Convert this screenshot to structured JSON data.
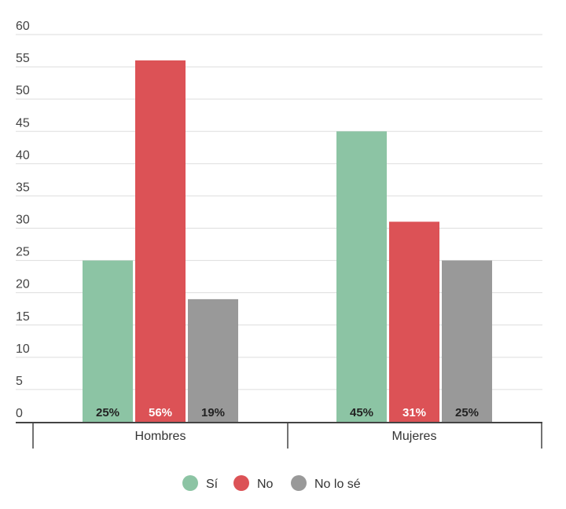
{
  "chart_data": {
    "type": "bar",
    "categories": [
      "Hombres",
      "Mujeres"
    ],
    "series": [
      {
        "name": "Sí",
        "values": [
          25,
          45
        ],
        "labels": [
          "25%",
          "45%"
        ],
        "color": "#8cc4a4",
        "label_color": "#222222"
      },
      {
        "name": "No",
        "values": [
          56,
          31
        ],
        "labels": [
          "56%",
          "31%"
        ],
        "color": "#dc5256",
        "label_color": "#ffffff"
      },
      {
        "name": "No lo sé",
        "values": [
          19,
          25
        ],
        "labels": [
          "19%",
          "25%"
        ],
        "color": "#999999",
        "label_color": "#222222"
      }
    ],
    "yticks": [
      0,
      5,
      10,
      15,
      20,
      25,
      30,
      35,
      40,
      45,
      50,
      55,
      60
    ],
    "ylim": [
      0,
      60
    ],
    "grid": true,
    "legend": "bottom-center",
    "gridline_color": "#dddddd",
    "axis_color": "#444444"
  }
}
